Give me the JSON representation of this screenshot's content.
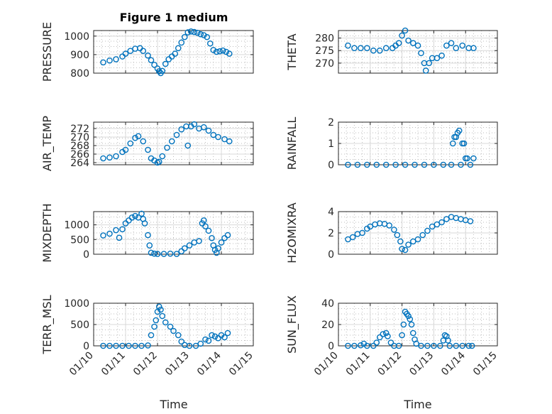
{
  "colors": {
    "marker": "#0072BD",
    "axis": "#262626",
    "grid": "#d9d9d9"
  },
  "chart_data": {
    "type": "scatter",
    "title": "Figure 1 medium",
    "marker": "circle-open",
    "xlabel": "Time",
    "x_ticks": [
      "01/10",
      "01/11",
      "01/12",
      "01/13",
      "01/14",
      "01/15"
    ],
    "x_range_days": [
      10,
      15
    ],
    "grid": true,
    "subplots": [
      {
        "id": "pressure",
        "ylabel": "PRESSURE",
        "ylim": [
          800,
          1030
        ],
        "yticks": [
          800,
          900,
          1000
        ],
        "points": [
          [
            10.3,
            858
          ],
          [
            10.5,
            868
          ],
          [
            10.7,
            875
          ],
          [
            10.9,
            890
          ],
          [
            11.0,
            905
          ],
          [
            11.15,
            920
          ],
          [
            11.3,
            932
          ],
          [
            11.45,
            935
          ],
          [
            11.55,
            920
          ],
          [
            11.7,
            895
          ],
          [
            11.8,
            870
          ],
          [
            11.9,
            845
          ],
          [
            12.0,
            825
          ],
          [
            12.05,
            810
          ],
          [
            12.1,
            800
          ],
          [
            12.15,
            812
          ],
          [
            12.25,
            850
          ],
          [
            12.35,
            875
          ],
          [
            12.45,
            890
          ],
          [
            12.55,
            905
          ],
          [
            12.65,
            935
          ],
          [
            12.75,
            965
          ],
          [
            12.85,
            995
          ],
          [
            12.95,
            1020
          ],
          [
            13.05,
            1025
          ],
          [
            13.15,
            1022
          ],
          [
            13.25,
            1018
          ],
          [
            13.35,
            1010
          ],
          [
            13.45,
            1005
          ],
          [
            13.55,
            995
          ],
          [
            13.65,
            960
          ],
          [
            13.75,
            925
          ],
          [
            13.85,
            915
          ],
          [
            13.95,
            918
          ],
          [
            14.05,
            922
          ],
          [
            14.15,
            915
          ],
          [
            14.25,
            905
          ]
        ]
      },
      {
        "id": "theta",
        "ylabel": "THETA",
        "ylim": [
          266,
          283
        ],
        "yticks": [
          270,
          275,
          280
        ],
        "points": [
          [
            10.3,
            277
          ],
          [
            10.5,
            276
          ],
          [
            10.7,
            276
          ],
          [
            10.9,
            276
          ],
          [
            11.1,
            275
          ],
          [
            11.3,
            275
          ],
          [
            11.5,
            276
          ],
          [
            11.7,
            276
          ],
          [
            11.8,
            277
          ],
          [
            11.9,
            278
          ],
          [
            12.0,
            281
          ],
          [
            12.1,
            283
          ],
          [
            12.2,
            279
          ],
          [
            12.35,
            278
          ],
          [
            12.5,
            277
          ],
          [
            12.6,
            274
          ],
          [
            12.7,
            270
          ],
          [
            12.75,
            267
          ],
          [
            12.85,
            270
          ],
          [
            12.95,
            272
          ],
          [
            13.1,
            272
          ],
          [
            13.25,
            273
          ],
          [
            13.4,
            277
          ],
          [
            13.55,
            278
          ],
          [
            13.7,
            276
          ],
          [
            13.9,
            277
          ],
          [
            14.1,
            276
          ],
          [
            14.25,
            276
          ]
        ]
      },
      {
        "id": "air_temp",
        "ylabel": "AIR_TEMP",
        "ylim": [
          263.5,
          273.5
        ],
        "yticks": [
          264,
          266,
          268,
          270,
          272
        ],
        "points": [
          [
            10.3,
            265
          ],
          [
            10.5,
            265.2
          ],
          [
            10.7,
            265.5
          ],
          [
            10.9,
            266.5
          ],
          [
            11.0,
            267
          ],
          [
            11.15,
            268.5
          ],
          [
            11.3,
            269.8
          ],
          [
            11.4,
            270.2
          ],
          [
            11.55,
            269
          ],
          [
            11.7,
            267
          ],
          [
            11.8,
            265
          ],
          [
            11.9,
            264.5
          ],
          [
            12.0,
            264
          ],
          [
            12.05,
            264.2
          ],
          [
            12.15,
            265.5
          ],
          [
            12.3,
            267.5
          ],
          [
            12.45,
            269
          ],
          [
            12.6,
            270.5
          ],
          [
            12.75,
            271.8
          ],
          [
            12.9,
            272.5
          ],
          [
            12.95,
            268
          ],
          [
            13.05,
            272.5
          ],
          [
            13.15,
            273
          ],
          [
            13.3,
            272
          ],
          [
            13.45,
            272.3
          ],
          [
            13.6,
            271.5
          ],
          [
            13.75,
            270.5
          ],
          [
            13.9,
            270
          ],
          [
            14.1,
            269.5
          ],
          [
            14.25,
            269
          ]
        ]
      },
      {
        "id": "rainfall",
        "ylabel": "RAINFALL",
        "ylim": [
          0,
          2
        ],
        "yticks": [
          0,
          1,
          2
        ],
        "points": [
          [
            10.3,
            0
          ],
          [
            10.6,
            0
          ],
          [
            10.9,
            0
          ],
          [
            11.2,
            0
          ],
          [
            11.5,
            0
          ],
          [
            11.8,
            0
          ],
          [
            12.1,
            0
          ],
          [
            12.4,
            0
          ],
          [
            12.7,
            0
          ],
          [
            13.0,
            0
          ],
          [
            13.3,
            0
          ],
          [
            13.55,
            0
          ],
          [
            13.6,
            1.0
          ],
          [
            13.65,
            1.3
          ],
          [
            13.7,
            1.3
          ],
          [
            13.75,
            1.5
          ],
          [
            13.8,
            1.6
          ],
          [
            13.85,
            0
          ],
          [
            13.9,
            1.0
          ],
          [
            13.95,
            1.0
          ],
          [
            14.0,
            0.3
          ],
          [
            14.05,
            0.3
          ],
          [
            14.15,
            0
          ],
          [
            14.25,
            0.3
          ]
        ]
      },
      {
        "id": "mixdepth",
        "ylabel": "MIXDEPTH",
        "ylim": [
          0,
          1450
        ],
        "yticks": [
          0,
          500,
          1000
        ],
        "points": [
          [
            10.3,
            640
          ],
          [
            10.5,
            700
          ],
          [
            10.7,
            820
          ],
          [
            10.8,
            560
          ],
          [
            10.9,
            850
          ],
          [
            11.0,
            1050
          ],
          [
            11.1,
            1150
          ],
          [
            11.2,
            1250
          ],
          [
            11.3,
            1300
          ],
          [
            11.4,
            1250
          ],
          [
            11.5,
            1380
          ],
          [
            11.55,
            1200
          ],
          [
            11.6,
            1050
          ],
          [
            11.7,
            650
          ],
          [
            11.75,
            300
          ],
          [
            11.8,
            50
          ],
          [
            11.9,
            20
          ],
          [
            12.0,
            10
          ],
          [
            12.2,
            10
          ],
          [
            12.4,
            20
          ],
          [
            12.6,
            10
          ],
          [
            12.75,
            100
          ],
          [
            12.85,
            200
          ],
          [
            13.0,
            300
          ],
          [
            13.15,
            400
          ],
          [
            13.3,
            450
          ],
          [
            13.4,
            1050
          ],
          [
            13.45,
            1150
          ],
          [
            13.5,
            950
          ],
          [
            13.6,
            800
          ],
          [
            13.7,
            550
          ],
          [
            13.75,
            300
          ],
          [
            13.8,
            150
          ],
          [
            13.85,
            50
          ],
          [
            13.9,
            200
          ],
          [
            14.0,
            400
          ],
          [
            14.1,
            550
          ],
          [
            14.2,
            650
          ]
        ]
      },
      {
        "id": "h2omixra",
        "ylabel": "H2OMIXRA",
        "ylim": [
          0,
          4
        ],
        "yticks": [
          0,
          2,
          4
        ],
        "points": [
          [
            10.3,
            1.4
          ],
          [
            10.45,
            1.6
          ],
          [
            10.6,
            1.9
          ],
          [
            10.75,
            2.0
          ],
          [
            10.9,
            2.4
          ],
          [
            11.0,
            2.6
          ],
          [
            11.15,
            2.8
          ],
          [
            11.3,
            2.9
          ],
          [
            11.45,
            2.85
          ],
          [
            11.6,
            2.7
          ],
          [
            11.75,
            2.3
          ],
          [
            11.85,
            1.8
          ],
          [
            11.95,
            1.2
          ],
          [
            12.0,
            0.5
          ],
          [
            12.1,
            0.4
          ],
          [
            12.2,
            0.9
          ],
          [
            12.35,
            1.2
          ],
          [
            12.5,
            1.4
          ],
          [
            12.65,
            1.8
          ],
          [
            12.8,
            2.2
          ],
          [
            12.95,
            2.6
          ],
          [
            13.1,
            2.8
          ],
          [
            13.25,
            3.0
          ],
          [
            13.4,
            3.3
          ],
          [
            13.55,
            3.5
          ],
          [
            13.7,
            3.4
          ],
          [
            13.85,
            3.3
          ],
          [
            14.0,
            3.2
          ],
          [
            14.15,
            3.1
          ]
        ]
      },
      {
        "id": "terr_msl",
        "ylabel": "TERR_MSL",
        "ylim": [
          0,
          1000
        ],
        "yticks": [
          0,
          500,
          1000
        ],
        "points": [
          [
            10.3,
            0
          ],
          [
            10.5,
            0
          ],
          [
            10.7,
            0
          ],
          [
            10.9,
            0
          ],
          [
            11.1,
            0
          ],
          [
            11.3,
            0
          ],
          [
            11.5,
            0
          ],
          [
            11.7,
            10
          ],
          [
            11.8,
            250
          ],
          [
            11.9,
            450
          ],
          [
            11.95,
            600
          ],
          [
            12.0,
            800
          ],
          [
            12.05,
            920
          ],
          [
            12.1,
            850
          ],
          [
            12.15,
            700
          ],
          [
            12.25,
            550
          ],
          [
            12.4,
            450
          ],
          [
            12.5,
            350
          ],
          [
            12.65,
            250
          ],
          [
            12.75,
            100
          ],
          [
            12.85,
            20
          ],
          [
            13.0,
            0
          ],
          [
            13.2,
            0
          ],
          [
            13.35,
            50
          ],
          [
            13.5,
            150
          ],
          [
            13.6,
            120
          ],
          [
            13.7,
            250
          ],
          [
            13.8,
            220
          ],
          [
            13.9,
            180
          ],
          [
            14.0,
            250
          ],
          [
            14.1,
            200
          ],
          [
            14.2,
            300
          ]
        ]
      },
      {
        "id": "sun_flux",
        "ylabel": "SUN_FLUX",
        "ylim": [
          0,
          40
        ],
        "yticks": [
          0,
          20,
          40
        ],
        "points": [
          [
            10.3,
            0
          ],
          [
            10.5,
            0
          ],
          [
            10.7,
            0.5
          ],
          [
            10.8,
            2
          ],
          [
            10.9,
            0
          ],
          [
            11.1,
            0
          ],
          [
            11.2,
            3
          ],
          [
            11.3,
            8
          ],
          [
            11.4,
            11
          ],
          [
            11.5,
            12
          ],
          [
            11.55,
            9
          ],
          [
            11.65,
            3
          ],
          [
            11.75,
            0
          ],
          [
            11.9,
            0
          ],
          [
            12.0,
            10
          ],
          [
            12.05,
            20
          ],
          [
            12.1,
            32
          ],
          [
            12.15,
            30
          ],
          [
            12.2,
            28
          ],
          [
            12.25,
            25
          ],
          [
            12.3,
            20
          ],
          [
            12.35,
            12
          ],
          [
            12.4,
            6
          ],
          [
            12.45,
            2
          ],
          [
            12.6,
            0
          ],
          [
            12.8,
            0
          ],
          [
            13.0,
            0
          ],
          [
            13.2,
            0
          ],
          [
            13.3,
            5
          ],
          [
            13.35,
            10
          ],
          [
            13.4,
            9
          ],
          [
            13.45,
            5
          ],
          [
            13.5,
            0
          ],
          [
            13.7,
            0
          ],
          [
            13.9,
            0
          ],
          [
            14.1,
            0
          ],
          [
            14.2,
            0
          ]
        ]
      }
    ]
  }
}
